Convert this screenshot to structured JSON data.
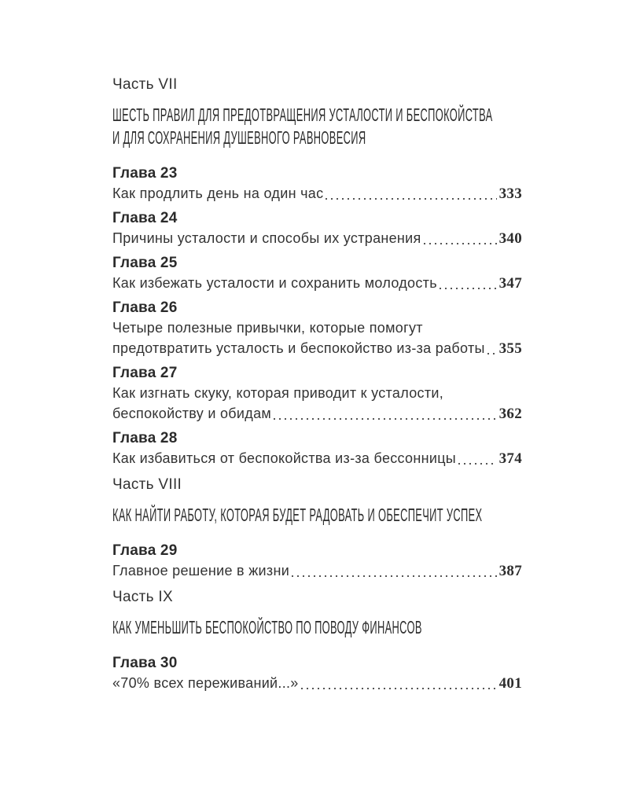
{
  "page": {
    "background": "#ffffff",
    "text_color": "#2f2f2f",
    "leader_dot_color": "#555555"
  },
  "toc": {
    "sections": [
      {
        "part_label": "Часть VII",
        "part_title_lines": [
          "ШЕСТЬ ПРАВИЛ ДЛЯ ПРЕДОТВРАЩЕНИЯ УСТАЛОСТИ И БЕСПОКОЙСТВА",
          "И ДЛЯ СОХРАНЕНИЯ ДУШЕВНОГО РАВНОВЕСИЯ"
        ],
        "chapters": [
          {
            "label": "Глава 23",
            "title_lines": [
              "Как продлить день на один час"
            ],
            "page": "333"
          },
          {
            "label": "Глава 24",
            "title_lines": [
              "Причины усталости и способы их устранения"
            ],
            "page": "340"
          },
          {
            "label": "Глава 25",
            "title_lines": [
              "Как избежать усталости и сохранить молодость"
            ],
            "page": "347"
          },
          {
            "label": "Глава 26",
            "title_lines": [
              "Четыре полезные привычки, которые помогут",
              "предотвратить усталость и беспокойство из-за работы"
            ],
            "page": "355"
          },
          {
            "label": "Глава 27",
            "title_lines": [
              "Как изгнать скуку, которая приводит к усталости,",
              "беспокойству и обидам"
            ],
            "page": "362"
          },
          {
            "label": "Глава 28",
            "title_lines": [
              "Как избавиться от беспокойства из-за бессонницы"
            ],
            "page": "374"
          }
        ]
      },
      {
        "part_label": "Часть VIII",
        "part_title_lines": [
          "КАК НАЙТИ РАБОТУ, КОТОРАЯ БУДЕТ РАДОВАТЬ И ОБЕСПЕЧИТ УСПЕХ"
        ],
        "chapters": [
          {
            "label": "Глава 29",
            "title_lines": [
              "Главное решение в жизни"
            ],
            "page": "387"
          }
        ]
      },
      {
        "part_label": "Часть IX",
        "part_title_lines": [
          "КАК УМЕНЬШИТЬ БЕСПОКОЙСТВО ПО ПОВОДУ ФИНАНСОВ"
        ],
        "chapters": [
          {
            "label": "Глава 30",
            "title_lines": [
              "«70% всех переживаний...»"
            ],
            "page": "401"
          }
        ]
      }
    ]
  }
}
